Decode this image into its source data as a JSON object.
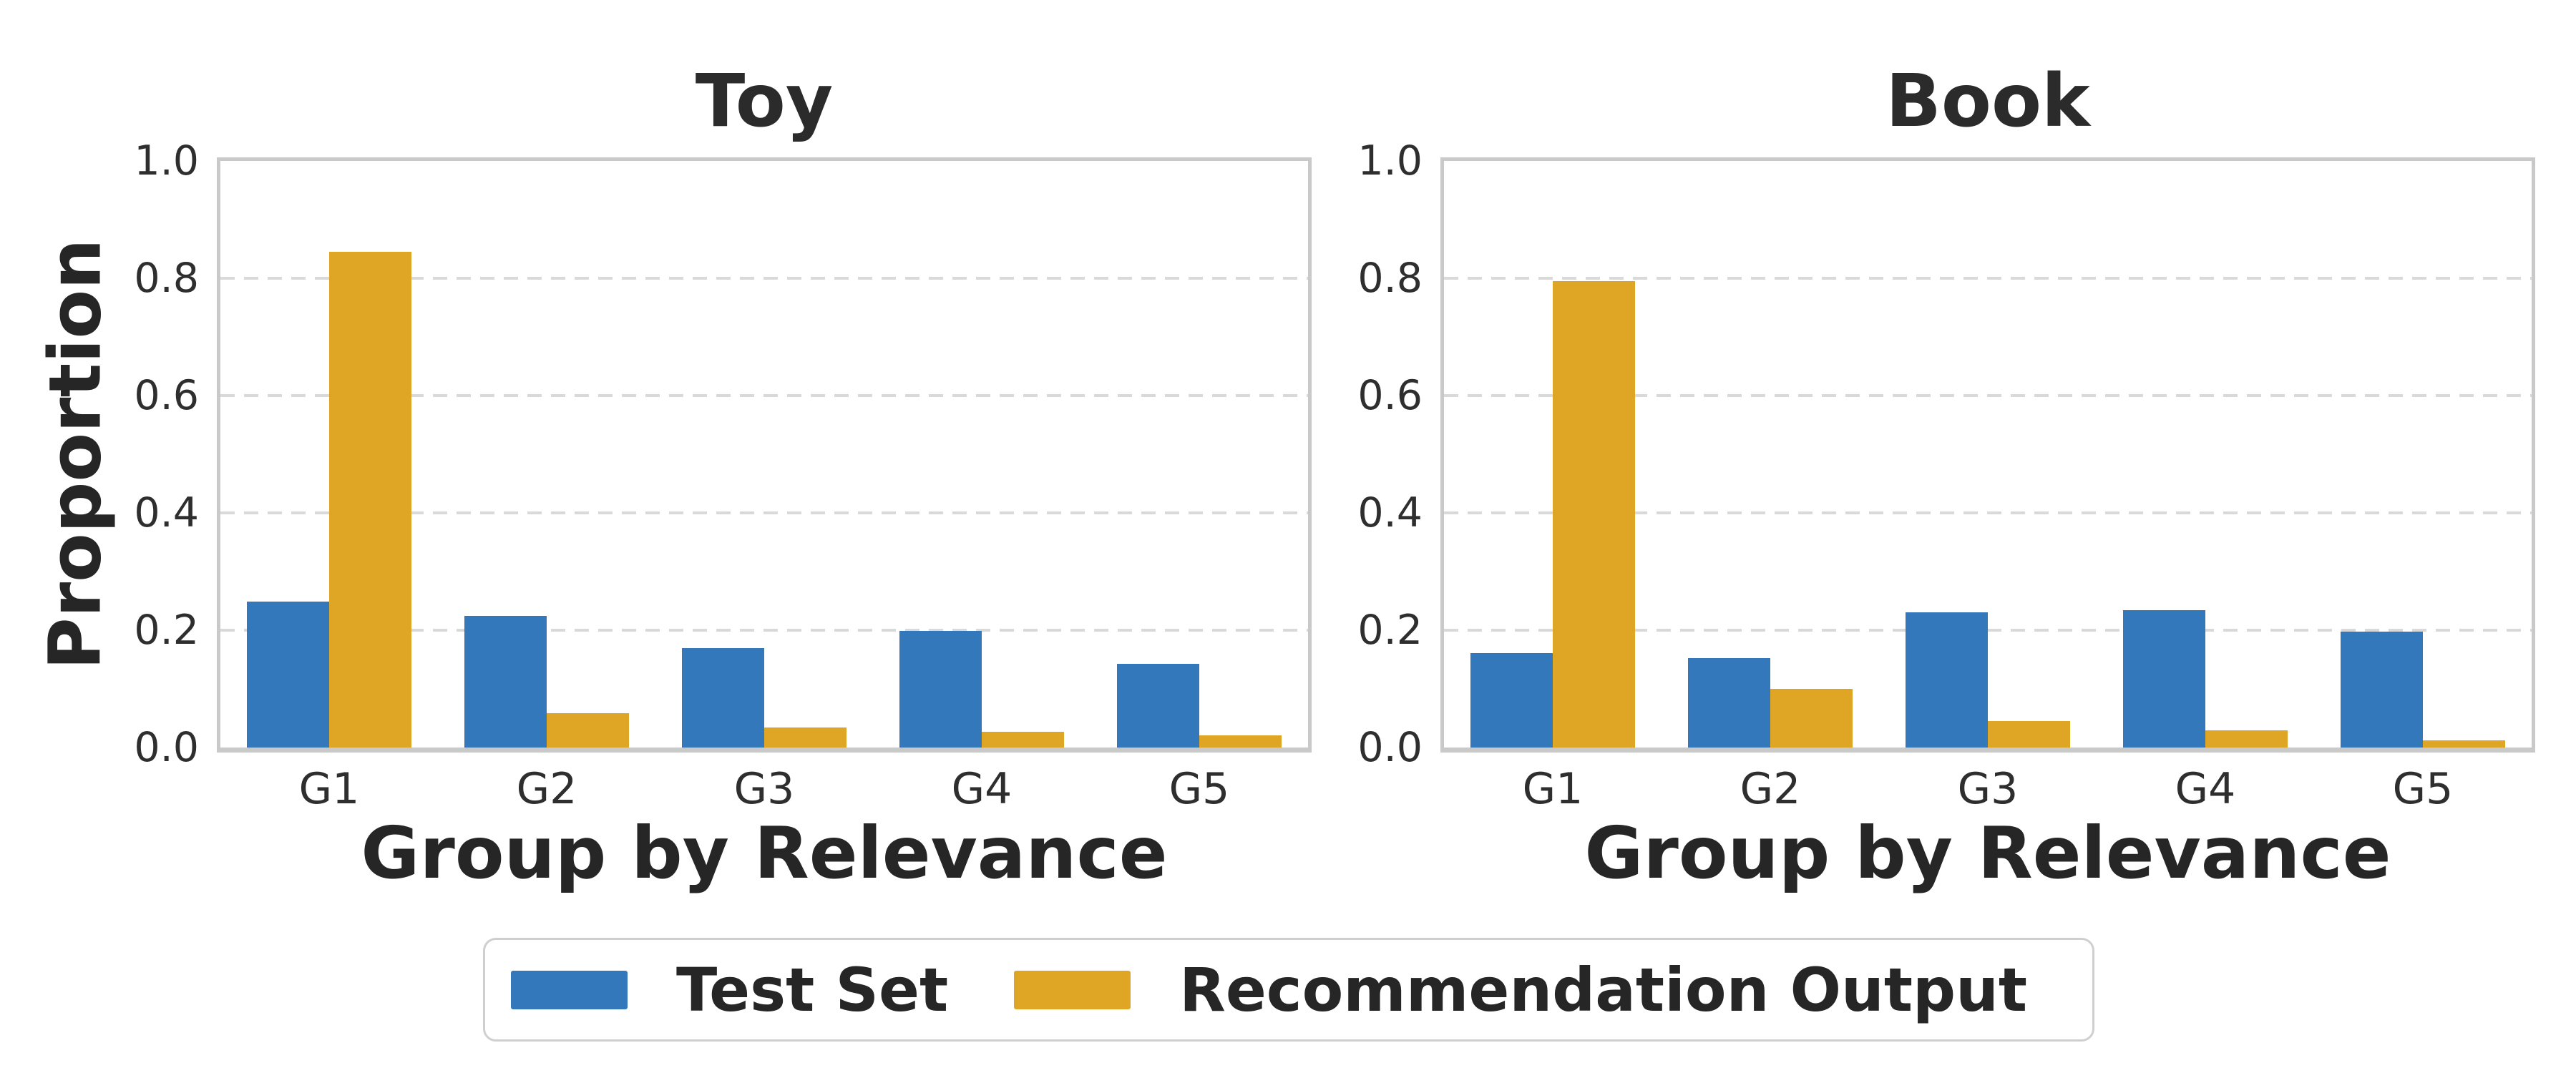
{
  "figure": {
    "background": "#ffffff",
    "ylabel": "Proportion",
    "text_color": "#2b2b2b",
    "spine_color": "#c9c9c9",
    "gridline_color": "#d9d9d9",
    "legend": [
      {
        "label": "Test Set",
        "color": "#3478bc"
      },
      {
        "label": "Recommendation Output",
        "color": "#dfa525"
      }
    ]
  },
  "chart_data": [
    {
      "type": "bar",
      "title": "Toy",
      "xlabel": "Group by Relevance",
      "ylabel": "Proportion",
      "categories": [
        "G1",
        "G2",
        "G3",
        "G4",
        "G5"
      ],
      "series": [
        {
          "name": "Test Set",
          "color": "#3478bc",
          "values": [
            0.249,
            0.225,
            0.17,
            0.199,
            0.143
          ]
        },
        {
          "name": "Recommendation Output",
          "color": "#dfa525",
          "values": [
            0.845,
            0.058,
            0.034,
            0.027,
            0.021
          ]
        }
      ],
      "ylim": [
        0,
        1.0
      ],
      "yticks": [
        "0.0",
        "0.2",
        "0.4",
        "0.6",
        "0.8",
        "1.0"
      ],
      "grid": "dashed-horizontal",
      "legend_position": "bottom-center"
    },
    {
      "type": "bar",
      "title": "Book",
      "xlabel": "Group by Relevance",
      "ylabel": "Proportion",
      "categories": [
        "G1",
        "G2",
        "G3",
        "G4",
        "G5"
      ],
      "series": [
        {
          "name": "Test Set",
          "color": "#3478bc",
          "values": [
            0.161,
            0.152,
            0.23,
            0.234,
            0.197
          ]
        },
        {
          "name": "Recommendation Output",
          "color": "#dfa525",
          "values": [
            0.795,
            0.1,
            0.045,
            0.029,
            0.012
          ]
        }
      ],
      "ylim": [
        0,
        1.0
      ],
      "yticks": [
        "0.0",
        "0.2",
        "0.4",
        "0.6",
        "0.8",
        "1.0"
      ],
      "grid": "dashed-horizontal",
      "legend_position": "bottom-center"
    }
  ]
}
